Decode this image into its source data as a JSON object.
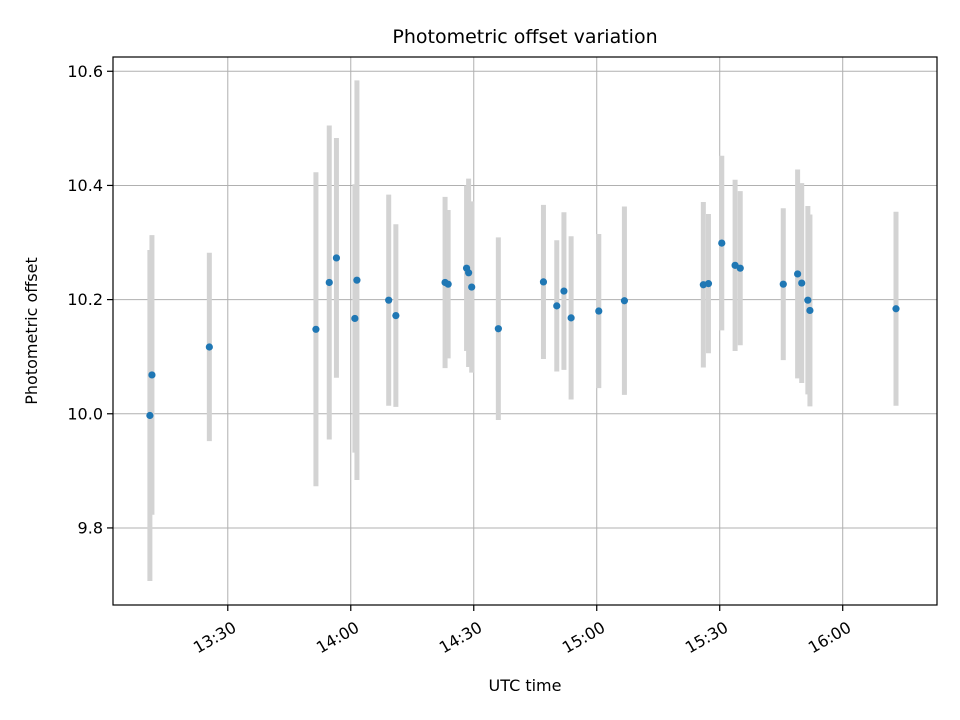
{
  "chart_data": {
    "type": "scatter",
    "title": "Photometric offset variation",
    "xlabel": "UTC time",
    "ylabel": "Photometric offset",
    "x_unit": "time of day (UTC)",
    "xlim": [
      "13:02",
      "16:23"
    ],
    "ylim": [
      9.665,
      10.625
    ],
    "x_ticks": [
      "13:30",
      "14:00",
      "14:30",
      "15:00",
      "15:30",
      "16:00"
    ],
    "y_ticks": [
      9.8,
      10.0,
      10.2,
      10.4,
      10.6
    ],
    "y_tick_labels": [
      "9.8",
      "10.0",
      "10.2",
      "10.4",
      "10.6"
    ],
    "grid": true,
    "point_color": "#1f77b4",
    "errorbar_color": "#d3d3d3",
    "series": [
      {
        "points": [
          {
            "x": "13:11:00",
            "y": 9.997,
            "yerr": 0.29
          },
          {
            "x": "13:11:30",
            "y": 10.068,
            "yerr": 0.245
          },
          {
            "x": "13:25:30",
            "y": 10.117,
            "yerr": 0.165
          },
          {
            "x": "13:51:30",
            "y": 10.148,
            "yerr": 0.275
          },
          {
            "x": "13:54:45",
            "y": 10.23,
            "yerr": 0.275
          },
          {
            "x": "13:56:30",
            "y": 10.273,
            "yerr": 0.21
          },
          {
            "x": "14:01:00",
            "y": 10.167,
            "yerr": 0.235
          },
          {
            "x": "14:01:30",
            "y": 10.234,
            "yerr": 0.35
          },
          {
            "x": "14:09:15",
            "y": 10.199,
            "yerr": 0.185
          },
          {
            "x": "14:11:00",
            "y": 10.172,
            "yerr": 0.16
          },
          {
            "x": "14:23:00",
            "y": 10.23,
            "yerr": 0.15
          },
          {
            "x": "14:23:45",
            "y": 10.227,
            "yerr": 0.13
          },
          {
            "x": "14:28:15",
            "y": 10.255,
            "yerr": 0.145
          },
          {
            "x": "14:28:45",
            "y": 10.247,
            "yerr": 0.165
          },
          {
            "x": "14:29:30",
            "y": 10.222,
            "yerr": 0.15
          },
          {
            "x": "14:36:00",
            "y": 10.149,
            "yerr": 0.16
          },
          {
            "x": "14:47:00",
            "y": 10.231,
            "yerr": 0.135
          },
          {
            "x": "14:50:15",
            "y": 10.189,
            "yerr": 0.115
          },
          {
            "x": "14:52:00",
            "y": 10.215,
            "yerr": 0.138
          },
          {
            "x": "14:53:45",
            "y": 10.168,
            "yerr": 0.143
          },
          {
            "x": "15:00:30",
            "y": 10.18,
            "yerr": 0.135
          },
          {
            "x": "15:06:45",
            "y": 10.198,
            "yerr": 0.165
          },
          {
            "x": "15:26:00",
            "y": 10.226,
            "yerr": 0.145
          },
          {
            "x": "15:27:15",
            "y": 10.228,
            "yerr": 0.122
          },
          {
            "x": "15:30:30",
            "y": 10.299,
            "yerr": 0.153
          },
          {
            "x": "15:33:45",
            "y": 10.26,
            "yerr": 0.15
          },
          {
            "x": "15:35:00",
            "y": 10.255,
            "yerr": 0.135
          },
          {
            "x": "15:45:30",
            "y": 10.227,
            "yerr": 0.133
          },
          {
            "x": "15:49:00",
            "y": 10.245,
            "yerr": 0.183
          },
          {
            "x": "15:50:00",
            "y": 10.229,
            "yerr": 0.175
          },
          {
            "x": "15:51:30",
            "y": 10.199,
            "yerr": 0.165
          },
          {
            "x": "15:52:00",
            "y": 10.181,
            "yerr": 0.168
          },
          {
            "x": "16:13:00",
            "y": 10.184,
            "yerr": 0.17
          }
        ]
      }
    ]
  }
}
